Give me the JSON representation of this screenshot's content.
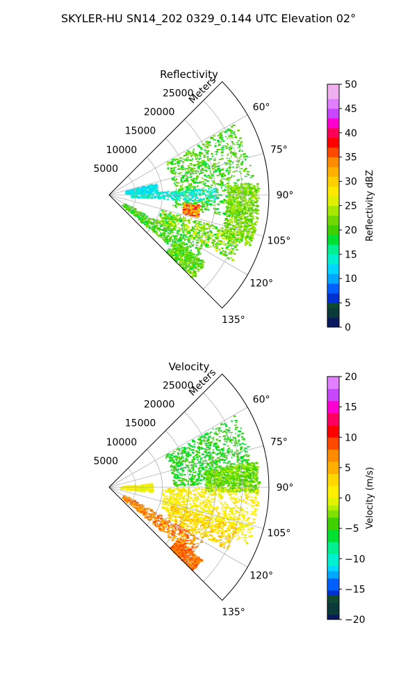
{
  "title": "SKYLER-HU  SN14_202  0329_0.144 UTC Elevation 02°",
  "chart_data": [
    {
      "type": "heatmap",
      "projection": "polar-sector",
      "title": "Reflectivity",
      "range_label": "Meters",
      "range_ticks": [
        5000,
        10000,
        15000,
        20000,
        25000
      ],
      "range_max": 30000,
      "azimuth_ticks": [
        "60°",
        "75°",
        "90°",
        "105°",
        "120°",
        "135°"
      ],
      "azimuth_range_deg": [
        45,
        135
      ],
      "grid": true,
      "colorbar": {
        "label": "Reflectivity dBZ",
        "min": 0,
        "max": 50,
        "ticks": [
          "0",
          "5",
          "10",
          "15",
          "20",
          "25",
          "30",
          "35",
          "40",
          "45",
          "50"
        ]
      },
      "seed": 7,
      "echo_regions": [
        {
          "az": [
            60,
            100
          ],
          "r": [
            12000,
            27000
          ],
          "value": 20,
          "spread": 3,
          "density": 0.95
        },
        {
          "az": [
            85,
            110
          ],
          "r": [
            22000,
            28000
          ],
          "value": 22,
          "spread": 3,
          "density": 0.85
        },
        {
          "az": [
            86,
            94
          ],
          "r": [
            4000,
            20000
          ],
          "value": 14,
          "spread": 2,
          "density": 0.35
        },
        {
          "az": [
            75,
            86
          ],
          "r": [
            3000,
            9000
          ],
          "value": 13,
          "spread": 2,
          "density": 0.3
        },
        {
          "az": [
            118,
            130
          ],
          "r": [
            3000,
            20000
          ],
          "value": 20,
          "spread": 3,
          "density": 0.55
        },
        {
          "az": [
            106,
            118
          ],
          "r": [
            10000,
            26000
          ],
          "value": 22,
          "spread": 4,
          "density": 0.55
        },
        {
          "az": [
            125,
            135
          ],
          "r": [
            15000,
            22000
          ],
          "value": 21,
          "spread": 3,
          "density": 0.4
        },
        {
          "az": [
            96,
            104
          ],
          "r": [
            14000,
            17000
          ],
          "value": 34,
          "spread": 6,
          "density": 0.25
        }
      ]
    },
    {
      "type": "heatmap",
      "projection": "polar-sector",
      "title": "Velocity",
      "range_label": "Meters",
      "range_ticks": [
        5000,
        10000,
        15000,
        20000,
        25000
      ],
      "range_max": 30000,
      "azimuth_ticks": [
        "60°",
        "75°",
        "90°",
        "105°",
        "120°",
        "135°"
      ],
      "azimuth_range_deg": [
        45,
        135
      ],
      "grid": true,
      "colorbar": {
        "label": "Velocity (m/s)",
        "min": -20,
        "max": 20,
        "ticks": [
          "−20",
          "−15",
          "−10",
          "−5",
          "0",
          "5",
          "10",
          "15",
          "20"
        ]
      },
      "seed": 11,
      "echo_regions": [
        {
          "az": [
            60,
            88
          ],
          "r": [
            12000,
            27000
          ],
          "value": -5,
          "spread": 2,
          "density": 0.9
        },
        {
          "az": [
            80,
            92
          ],
          "r": [
            18000,
            28000
          ],
          "value": -3,
          "spread": 2,
          "density": 0.85
        },
        {
          "az": [
            90,
            112
          ],
          "r": [
            10000,
            28000
          ],
          "value": 1,
          "spread": 1.5,
          "density": 0.95
        },
        {
          "az": [
            118,
            130
          ],
          "r": [
            3000,
            20000
          ],
          "value": 7,
          "spread": 3,
          "density": 0.55
        },
        {
          "az": [
            106,
            118
          ],
          "r": [
            12000,
            25000
          ],
          "value": 3,
          "spread": 3,
          "density": 0.45
        },
        {
          "az": [
            128,
            135
          ],
          "r": [
            16000,
            22000
          ],
          "value": 8,
          "spread": 2,
          "density": 0.45
        },
        {
          "az": [
            84,
            96
          ],
          "r": [
            2000,
            8000
          ],
          "value": 0,
          "spread": 1,
          "density": 0.3
        }
      ]
    }
  ]
}
